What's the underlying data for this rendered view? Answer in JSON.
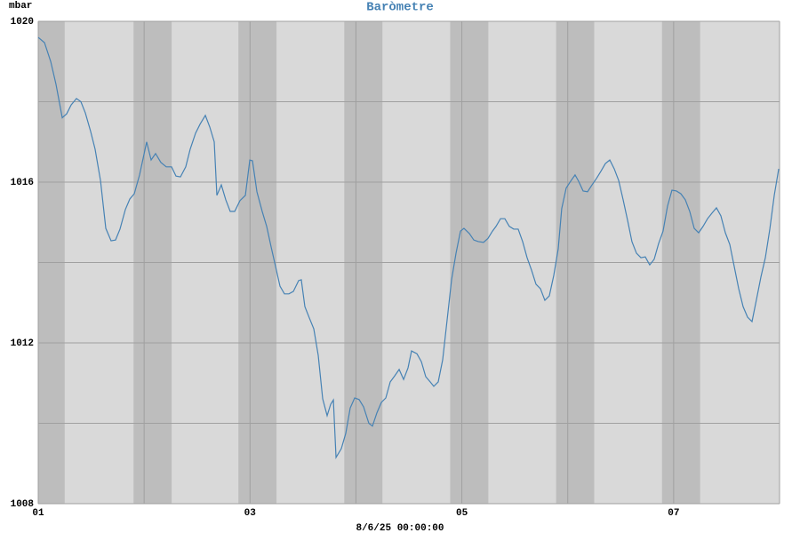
{
  "chart_data": {
    "type": "line",
    "title": "Baròmetre",
    "ylabel": "mbar",
    "xlabel": "8/6/25 00:00:00",
    "xlim": [
      1,
      8
    ],
    "ylim": [
      1008,
      1020
    ],
    "xticks": [
      {
        "value": 1,
        "label": "01"
      },
      {
        "value": 3,
        "label": "03"
      },
      {
        "value": 5,
        "label": "05"
      },
      {
        "value": 7,
        "label": "07"
      }
    ],
    "xminor": [
      2,
      4,
      6,
      8
    ],
    "yticks": [
      1008,
      1012,
      1016,
      1020
    ],
    "yminor": [
      1010,
      1014,
      1018
    ],
    "grid": true,
    "background": "#d9d9d9",
    "night_color": "#bdbdbd",
    "night_bands": [
      [
        1.0,
        1.25
      ],
      [
        1.9,
        2.26
      ],
      [
        2.89,
        3.25
      ],
      [
        3.89,
        4.25
      ],
      [
        4.89,
        5.25
      ],
      [
        5.89,
        6.25
      ],
      [
        6.89,
        7.25
      ]
    ],
    "series": [
      {
        "color": "#4682b4",
        "x": [
          1.0,
          1.059,
          1.118,
          1.168,
          1.227,
          1.269,
          1.311,
          1.361,
          1.403,
          1.445,
          1.495,
          1.537,
          1.588,
          1.638,
          1.688,
          1.73,
          1.772,
          1.823,
          1.865,
          1.907,
          1.957,
          2.024,
          2.066,
          2.108,
          2.158,
          2.209,
          2.259,
          2.301,
          2.343,
          2.393,
          2.435,
          2.486,
          2.528,
          2.578,
          2.62,
          2.662,
          2.687,
          2.729,
          2.771,
          2.813,
          2.855,
          2.905,
          2.956,
          2.998,
          3.023,
          3.065,
          3.115,
          3.157,
          3.199,
          3.241,
          3.283,
          3.325,
          3.367,
          3.409,
          3.459,
          3.484,
          3.518,
          3.56,
          3.602,
          3.644,
          3.686,
          3.728,
          3.761,
          3.787,
          3.812,
          3.862,
          3.904,
          3.946,
          3.988,
          4.03,
          4.072,
          4.122,
          4.156,
          4.198,
          4.24,
          4.282,
          4.324,
          4.366,
          4.408,
          4.45,
          4.492,
          4.525,
          4.576,
          4.618,
          4.659,
          4.701,
          4.735,
          4.777,
          4.819,
          4.861,
          4.903,
          4.945,
          4.987,
          5.02,
          5.071,
          5.113,
          5.155,
          5.205,
          5.247,
          5.289,
          5.323,
          5.365,
          5.406,
          5.448,
          5.49,
          5.532,
          5.574,
          5.616,
          5.658,
          5.7,
          5.742,
          5.784,
          5.826,
          5.868,
          5.91,
          5.943,
          5.985,
          6.027,
          6.069,
          6.103,
          6.145,
          6.187,
          6.229,
          6.271,
          6.313,
          6.355,
          6.397,
          6.439,
          6.481,
          6.523,
          6.565,
          6.606,
          6.649,
          6.691,
          6.732,
          6.774,
          6.816,
          6.858,
          6.9,
          6.942,
          6.984,
          7.026,
          7.068,
          7.11,
          7.152,
          7.194,
          7.236,
          7.278,
          7.32,
          7.362,
          7.404,
          7.446,
          7.488,
          7.53,
          7.572,
          7.614,
          7.656,
          7.698,
          7.74,
          7.782,
          7.824,
          7.866,
          7.908,
          7.95,
          7.992
        ],
        "values": [
          1019.6,
          1019.47,
          1019.0,
          1018.43,
          1017.6,
          1017.7,
          1017.92,
          1018.08,
          1018.0,
          1017.72,
          1017.26,
          1016.82,
          1016.04,
          1014.85,
          1014.54,
          1014.56,
          1014.83,
          1015.32,
          1015.58,
          1015.71,
          1016.18,
          1017.0,
          1016.55,
          1016.71,
          1016.49,
          1016.38,
          1016.38,
          1016.15,
          1016.13,
          1016.38,
          1016.82,
          1017.22,
          1017.44,
          1017.66,
          1017.37,
          1017.0,
          1015.67,
          1015.93,
          1015.56,
          1015.27,
          1015.27,
          1015.54,
          1015.67,
          1016.55,
          1016.53,
          1015.76,
          1015.27,
          1014.9,
          1014.39,
          1013.9,
          1013.41,
          1013.22,
          1013.22,
          1013.28,
          1013.55,
          1013.57,
          1012.9,
          1012.62,
          1012.35,
          1011.69,
          1010.61,
          1010.19,
          1010.47,
          1010.58,
          1009.15,
          1009.37,
          1009.75,
          1010.38,
          1010.63,
          1010.59,
          1010.41,
          1010.0,
          1009.93,
          1010.26,
          1010.52,
          1010.63,
          1011.03,
          1011.18,
          1011.34,
          1011.09,
          1011.38,
          1011.8,
          1011.73,
          1011.53,
          1011.16,
          1011.03,
          1010.92,
          1011.03,
          1011.58,
          1012.57,
          1013.57,
          1014.23,
          1014.78,
          1014.85,
          1014.72,
          1014.56,
          1014.52,
          1014.5,
          1014.6,
          1014.78,
          1014.9,
          1015.09,
          1015.09,
          1014.9,
          1014.83,
          1014.83,
          1014.52,
          1014.12,
          1013.81,
          1013.46,
          1013.35,
          1013.06,
          1013.17,
          1013.68,
          1014.34,
          1015.34,
          1015.85,
          1016.02,
          1016.18,
          1016.02,
          1015.78,
          1015.76,
          1015.93,
          1016.09,
          1016.27,
          1016.46,
          1016.55,
          1016.33,
          1016.04,
          1015.56,
          1015.05,
          1014.52,
          1014.23,
          1014.12,
          1014.14,
          1013.94,
          1014.08,
          1014.47,
          1014.78,
          1015.4,
          1015.8,
          1015.78,
          1015.71,
          1015.56,
          1015.27,
          1014.85,
          1014.74,
          1014.9,
          1015.09,
          1015.23,
          1015.36,
          1015.16,
          1014.74,
          1014.45,
          1013.9,
          1013.35,
          1012.9,
          1012.64,
          1012.53,
          1013.08,
          1013.64,
          1014.12,
          1014.83,
          1015.67,
          1016.33
        ]
      }
    ]
  }
}
